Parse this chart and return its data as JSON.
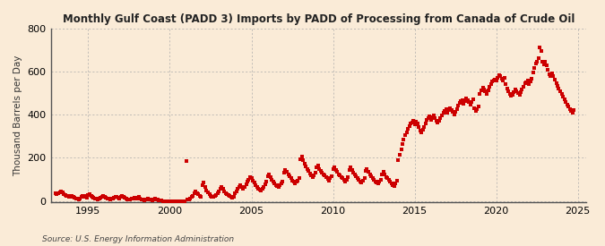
{
  "title": "Monthly Gulf Coast (PADD 3) Imports by PADD of Processing from Canada of Crude Oil",
  "ylabel": "Thousand Barrels per Day",
  "source": "Source: U.S. Energy Information Administration",
  "background_color": "#faebd7",
  "dot_color": "#cc0000",
  "grid_color": "#aaaaaa",
  "xlim": [
    1992.7,
    2025.5
  ],
  "ylim": [
    -5,
    800
  ],
  "yticks": [
    0,
    200,
    400,
    600,
    800
  ],
  "xticks": [
    1995,
    2000,
    2005,
    2010,
    2015,
    2020,
    2025
  ],
  "marker_size": 9,
  "data_points": [
    [
      1993.0,
      38
    ],
    [
      1993.08,
      30
    ],
    [
      1993.17,
      34
    ],
    [
      1993.25,
      42
    ],
    [
      1993.33,
      45
    ],
    [
      1993.42,
      40
    ],
    [
      1993.5,
      32
    ],
    [
      1993.58,
      28
    ],
    [
      1993.67,
      25
    ],
    [
      1993.75,
      22
    ],
    [
      1993.83,
      20
    ],
    [
      1993.92,
      18
    ],
    [
      1994.0,
      22
    ],
    [
      1994.08,
      18
    ],
    [
      1994.17,
      15
    ],
    [
      1994.25,
      12
    ],
    [
      1994.33,
      10
    ],
    [
      1994.42,
      8
    ],
    [
      1994.5,
      12
    ],
    [
      1994.58,
      18
    ],
    [
      1994.67,
      22
    ],
    [
      1994.75,
      25
    ],
    [
      1994.83,
      20
    ],
    [
      1994.92,
      15
    ],
    [
      1995.0,
      28
    ],
    [
      1995.08,
      32
    ],
    [
      1995.17,
      25
    ],
    [
      1995.25,
      20
    ],
    [
      1995.33,
      15
    ],
    [
      1995.42,
      12
    ],
    [
      1995.5,
      10
    ],
    [
      1995.58,
      8
    ],
    [
      1995.67,
      12
    ],
    [
      1995.75,
      15
    ],
    [
      1995.83,
      18
    ],
    [
      1995.92,
      22
    ],
    [
      1996.0,
      18
    ],
    [
      1996.08,
      15
    ],
    [
      1996.17,
      12
    ],
    [
      1996.25,
      10
    ],
    [
      1996.33,
      8
    ],
    [
      1996.42,
      10
    ],
    [
      1996.5,
      12
    ],
    [
      1996.58,
      15
    ],
    [
      1996.67,
      18
    ],
    [
      1996.75,
      20
    ],
    [
      1996.83,
      15
    ],
    [
      1996.92,
      10
    ],
    [
      1997.0,
      18
    ],
    [
      1997.08,
      22
    ],
    [
      1997.17,
      18
    ],
    [
      1997.25,
      15
    ],
    [
      1997.33,
      10
    ],
    [
      1997.42,
      8
    ],
    [
      1997.5,
      5
    ],
    [
      1997.58,
      8
    ],
    [
      1997.67,
      10
    ],
    [
      1997.75,
      12
    ],
    [
      1997.83,
      15
    ],
    [
      1997.92,
      12
    ],
    [
      1998.0,
      15
    ],
    [
      1998.08,
      18
    ],
    [
      1998.17,
      12
    ],
    [
      1998.25,
      8
    ],
    [
      1998.33,
      5
    ],
    [
      1998.42,
      3
    ],
    [
      1998.5,
      5
    ],
    [
      1998.58,
      8
    ],
    [
      1998.67,
      10
    ],
    [
      1998.75,
      8
    ],
    [
      1998.83,
      5
    ],
    [
      1998.92,
      3
    ],
    [
      1999.0,
      8
    ],
    [
      1999.08,
      10
    ],
    [
      1999.17,
      8
    ],
    [
      1999.25,
      5
    ],
    [
      1999.33,
      3
    ],
    [
      1999.42,
      2
    ],
    [
      1999.5,
      1
    ],
    [
      1999.58,
      0
    ],
    [
      1999.67,
      0
    ],
    [
      1999.75,
      0
    ],
    [
      1999.83,
      0
    ],
    [
      1999.92,
      0
    ],
    [
      2000.0,
      0
    ],
    [
      2000.08,
      0
    ],
    [
      2000.17,
      0
    ],
    [
      2000.25,
      0
    ],
    [
      2000.33,
      0
    ],
    [
      2000.42,
      0
    ],
    [
      2000.5,
      0
    ],
    [
      2000.58,
      0
    ],
    [
      2000.67,
      0
    ],
    [
      2000.75,
      0
    ],
    [
      2000.83,
      0
    ],
    [
      2000.92,
      0
    ],
    [
      2001.0,
      185
    ],
    [
      2001.08,
      5
    ],
    [
      2001.17,
      8
    ],
    [
      2001.25,
      12
    ],
    [
      2001.33,
      18
    ],
    [
      2001.42,
      25
    ],
    [
      2001.5,
      35
    ],
    [
      2001.58,
      45
    ],
    [
      2001.67,
      38
    ],
    [
      2001.75,
      30
    ],
    [
      2001.83,
      22
    ],
    [
      2001.92,
      18
    ],
    [
      2002.0,
      75
    ],
    [
      2002.08,
      85
    ],
    [
      2002.17,
      65
    ],
    [
      2002.25,
      50
    ],
    [
      2002.33,
      40
    ],
    [
      2002.42,
      32
    ],
    [
      2002.5,
      25
    ],
    [
      2002.58,
      20
    ],
    [
      2002.67,
      18
    ],
    [
      2002.75,
      22
    ],
    [
      2002.83,
      28
    ],
    [
      2002.92,
      35
    ],
    [
      2003.0,
      45
    ],
    [
      2003.08,
      55
    ],
    [
      2003.17,
      65
    ],
    [
      2003.25,
      55
    ],
    [
      2003.33,
      45
    ],
    [
      2003.42,
      38
    ],
    [
      2003.5,
      32
    ],
    [
      2003.58,
      28
    ],
    [
      2003.67,
      22
    ],
    [
      2003.75,
      18
    ],
    [
      2003.83,
      15
    ],
    [
      2003.92,
      20
    ],
    [
      2004.0,
      35
    ],
    [
      2004.08,
      45
    ],
    [
      2004.17,
      55
    ],
    [
      2004.25,
      65
    ],
    [
      2004.33,
      75
    ],
    [
      2004.42,
      65
    ],
    [
      2004.5,
      55
    ],
    [
      2004.58,
      65
    ],
    [
      2004.67,
      78
    ],
    [
      2004.75,
      90
    ],
    [
      2004.83,
      100
    ],
    [
      2004.92,
      110
    ],
    [
      2005.0,
      105
    ],
    [
      2005.08,
      95
    ],
    [
      2005.17,
      85
    ],
    [
      2005.25,
      75
    ],
    [
      2005.33,
      65
    ],
    [
      2005.42,
      58
    ],
    [
      2005.5,
      52
    ],
    [
      2005.58,
      48
    ],
    [
      2005.67,
      55
    ],
    [
      2005.75,
      65
    ],
    [
      2005.83,
      78
    ],
    [
      2005.92,
      90
    ],
    [
      2006.0,
      115
    ],
    [
      2006.08,
      125
    ],
    [
      2006.17,
      110
    ],
    [
      2006.25,
      100
    ],
    [
      2006.33,
      90
    ],
    [
      2006.42,
      80
    ],
    [
      2006.5,
      75
    ],
    [
      2006.58,
      70
    ],
    [
      2006.67,
      65
    ],
    [
      2006.75,
      72
    ],
    [
      2006.83,
      80
    ],
    [
      2006.92,
      92
    ],
    [
      2007.0,
      130
    ],
    [
      2007.08,
      145
    ],
    [
      2007.17,
      135
    ],
    [
      2007.25,
      125
    ],
    [
      2007.33,
      115
    ],
    [
      2007.42,
      105
    ],
    [
      2007.5,
      95
    ],
    [
      2007.58,
      88
    ],
    [
      2007.67,
      80
    ],
    [
      2007.75,
      88
    ],
    [
      2007.83,
      95
    ],
    [
      2007.92,
      105
    ],
    [
      2008.0,
      195
    ],
    [
      2008.08,
      205
    ],
    [
      2008.17,
      190
    ],
    [
      2008.25,
      175
    ],
    [
      2008.33,
      160
    ],
    [
      2008.42,
      148
    ],
    [
      2008.5,
      138
    ],
    [
      2008.58,
      128
    ],
    [
      2008.67,
      118
    ],
    [
      2008.75,
      110
    ],
    [
      2008.83,
      120
    ],
    [
      2008.92,
      130
    ],
    [
      2009.0,
      155
    ],
    [
      2009.08,
      165
    ],
    [
      2009.17,
      150
    ],
    [
      2009.25,
      140
    ],
    [
      2009.33,
      132
    ],
    [
      2009.42,
      125
    ],
    [
      2009.5,
      118
    ],
    [
      2009.58,
      110
    ],
    [
      2009.67,
      102
    ],
    [
      2009.75,
      95
    ],
    [
      2009.83,
      105
    ],
    [
      2009.92,
      115
    ],
    [
      2010.0,
      148
    ],
    [
      2010.08,
      158
    ],
    [
      2010.17,
      145
    ],
    [
      2010.25,
      135
    ],
    [
      2010.33,
      125
    ],
    [
      2010.42,
      118
    ],
    [
      2010.5,
      112
    ],
    [
      2010.58,
      105
    ],
    [
      2010.67,
      98
    ],
    [
      2010.75,
      92
    ],
    [
      2010.83,
      100
    ],
    [
      2010.92,
      112
    ],
    [
      2011.0,
      145
    ],
    [
      2011.08,
      155
    ],
    [
      2011.17,
      142
    ],
    [
      2011.25,
      132
    ],
    [
      2011.33,
      122
    ],
    [
      2011.42,
      115
    ],
    [
      2011.5,
      108
    ],
    [
      2011.58,
      100
    ],
    [
      2011.67,
      92
    ],
    [
      2011.75,
      85
    ],
    [
      2011.83,
      95
    ],
    [
      2011.92,
      108
    ],
    [
      2012.0,
      138
    ],
    [
      2012.08,
      148
    ],
    [
      2012.17,
      135
    ],
    [
      2012.25,
      125
    ],
    [
      2012.33,
      115
    ],
    [
      2012.42,
      108
    ],
    [
      2012.5,
      100
    ],
    [
      2012.58,
      92
    ],
    [
      2012.67,
      85
    ],
    [
      2012.75,
      80
    ],
    [
      2012.83,
      88
    ],
    [
      2012.92,
      100
    ],
    [
      2013.0,
      125
    ],
    [
      2013.08,
      135
    ],
    [
      2013.17,
      122
    ],
    [
      2013.25,
      112
    ],
    [
      2013.33,
      105
    ],
    [
      2013.42,
      98
    ],
    [
      2013.5,
      90
    ],
    [
      2013.58,
      82
    ],
    [
      2013.67,
      75
    ],
    [
      2013.75,
      70
    ],
    [
      2013.83,
      80
    ],
    [
      2013.92,
      95
    ],
    [
      2014.0,
      190
    ],
    [
      2014.08,
      215
    ],
    [
      2014.17,
      240
    ],
    [
      2014.25,
      265
    ],
    [
      2014.33,
      285
    ],
    [
      2014.42,
      305
    ],
    [
      2014.5,
      320
    ],
    [
      2014.58,
      335
    ],
    [
      2014.67,
      348
    ],
    [
      2014.75,
      358
    ],
    [
      2014.83,
      365
    ],
    [
      2014.92,
      372
    ],
    [
      2015.0,
      355
    ],
    [
      2015.08,
      368
    ],
    [
      2015.17,
      358
    ],
    [
      2015.25,
      342
    ],
    [
      2015.33,
      328
    ],
    [
      2015.42,
      318
    ],
    [
      2015.5,
      330
    ],
    [
      2015.58,
      345
    ],
    [
      2015.67,
      360
    ],
    [
      2015.75,
      375
    ],
    [
      2015.83,
      385
    ],
    [
      2015.92,
      395
    ],
    [
      2016.0,
      378
    ],
    [
      2016.08,
      388
    ],
    [
      2016.17,
      398
    ],
    [
      2016.25,
      385
    ],
    [
      2016.33,
      372
    ],
    [
      2016.42,
      362
    ],
    [
      2016.5,
      372
    ],
    [
      2016.58,
      385
    ],
    [
      2016.67,
      398
    ],
    [
      2016.75,
      410
    ],
    [
      2016.83,
      418
    ],
    [
      2016.92,
      425
    ],
    [
      2017.0,
      408
    ],
    [
      2017.08,
      420
    ],
    [
      2017.17,
      432
    ],
    [
      2017.25,
      422
    ],
    [
      2017.33,
      412
    ],
    [
      2017.42,
      402
    ],
    [
      2017.5,
      415
    ],
    [
      2017.58,
      428
    ],
    [
      2017.67,
      442
    ],
    [
      2017.75,
      455
    ],
    [
      2017.83,
      462
    ],
    [
      2017.92,
      468
    ],
    [
      2018.0,
      452
    ],
    [
      2018.08,
      465
    ],
    [
      2018.17,
      478
    ],
    [
      2018.25,
      468
    ],
    [
      2018.33,
      458
    ],
    [
      2018.42,
      448
    ],
    [
      2018.5,
      460
    ],
    [
      2018.58,
      472
    ],
    [
      2018.67,
      432
    ],
    [
      2018.75,
      418
    ],
    [
      2018.83,
      428
    ],
    [
      2018.92,
      438
    ],
    [
      2019.0,
      498
    ],
    [
      2019.08,
      512
    ],
    [
      2019.17,
      525
    ],
    [
      2019.25,
      518
    ],
    [
      2019.33,
      508
    ],
    [
      2019.42,
      498
    ],
    [
      2019.5,
      512
    ],
    [
      2019.58,
      528
    ],
    [
      2019.67,
      542
    ],
    [
      2019.75,
      555
    ],
    [
      2019.83,
      560
    ],
    [
      2019.92,
      565
    ],
    [
      2020.0,
      558
    ],
    [
      2020.08,
      572
    ],
    [
      2020.17,
      585
    ],
    [
      2020.25,
      578
    ],
    [
      2020.33,
      568
    ],
    [
      2020.42,
      558
    ],
    [
      2020.5,
      572
    ],
    [
      2020.58,
      542
    ],
    [
      2020.67,
      522
    ],
    [
      2020.75,
      508
    ],
    [
      2020.83,
      495
    ],
    [
      2020.92,
      488
    ],
    [
      2021.0,
      492
    ],
    [
      2021.08,
      505
    ],
    [
      2021.17,
      518
    ],
    [
      2021.25,
      510
    ],
    [
      2021.33,
      500
    ],
    [
      2021.42,
      492
    ],
    [
      2021.5,
      505
    ],
    [
      2021.58,
      518
    ],
    [
      2021.67,
      532
    ],
    [
      2021.75,
      545
    ],
    [
      2021.83,
      552
    ],
    [
      2021.92,
      558
    ],
    [
      2022.0,
      542
    ],
    [
      2022.08,
      555
    ],
    [
      2022.17,
      568
    ],
    [
      2022.25,
      598
    ],
    [
      2022.33,
      618
    ],
    [
      2022.42,
      638
    ],
    [
      2022.5,
      648
    ],
    [
      2022.58,
      662
    ],
    [
      2022.67,
      712
    ],
    [
      2022.75,
      698
    ],
    [
      2022.83,
      648
    ],
    [
      2022.92,
      635
    ],
    [
      2023.0,
      648
    ],
    [
      2023.08,
      628
    ],
    [
      2023.17,
      608
    ],
    [
      2023.25,
      588
    ],
    [
      2023.33,
      578
    ],
    [
      2023.42,
      592
    ],
    [
      2023.5,
      578
    ],
    [
      2023.58,
      562
    ],
    [
      2023.67,
      548
    ],
    [
      2023.75,
      535
    ],
    [
      2023.83,
      522
    ],
    [
      2023.92,
      510
    ],
    [
      2024.0,
      498
    ],
    [
      2024.08,
      485
    ],
    [
      2024.17,
      472
    ],
    [
      2024.25,
      460
    ],
    [
      2024.33,
      448
    ],
    [
      2024.42,
      438
    ],
    [
      2024.5,
      428
    ],
    [
      2024.58,
      418
    ],
    [
      2024.67,
      410
    ],
    [
      2024.75,
      422
    ]
  ]
}
